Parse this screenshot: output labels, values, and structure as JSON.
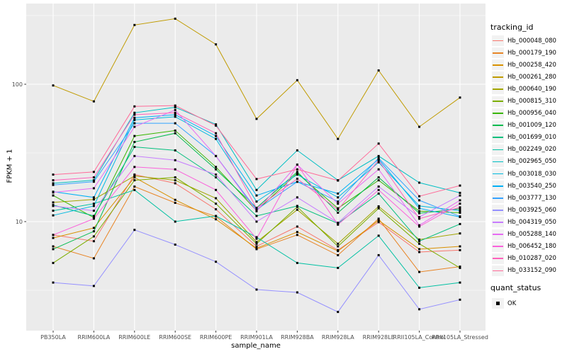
{
  "chart_data": {
    "type": "line",
    "title": "",
    "xlabel": "sample_name",
    "ylabel": "FPKM + 1",
    "y_scale": "log10",
    "y_ticks": [
      10,
      100
    ],
    "y_minor_ticks": [
      3.162,
      31.623,
      316.228
    ],
    "ylim": [
      1.6,
      380
    ],
    "grid": true,
    "panel_background": "#EBEBEB",
    "gridline_color": "#FFFFFF",
    "tick_label_color": "#4D4D4D",
    "legend_position": "right",
    "legend_title": "tracking_id",
    "quant_legend": {
      "title": "quant_status",
      "label": "OK"
    },
    "point_shape": "filled-square",
    "point_color": "#000000",
    "x_categories": [
      "PB350LA",
      "RRIM600LA",
      "RRIM600LE",
      "RRIM600SE",
      "RRIM600PE",
      "RRIM901LA",
      "RRIM928BA",
      "RRIM928LA",
      "RRIM928LE",
      "RRII105LA_Control",
      "RRII105LA_Stressed"
    ],
    "series": [
      {
        "name": "Hb_000048_080",
        "color": "#F8766D",
        "values": [
          8.0,
          7.2,
          22,
          19,
          12.3,
          6.6,
          9.2,
          6.2,
          9.9,
          6.0,
          6.2
        ]
      },
      {
        "name": "Hb_000179_190",
        "color": "#E88526",
        "values": [
          6.6,
          5.4,
          18,
          13.7,
          10.9,
          6.3,
          8.0,
          5.7,
          10.5,
          4.3,
          4.7
        ]
      },
      {
        "name": "Hb_000258_420",
        "color": "#D89000",
        "values": [
          7.6,
          9.0,
          21,
          14.4,
          10.4,
          6.4,
          8.4,
          6.1,
          10.2,
          6.3,
          6.6
        ]
      },
      {
        "name": "Hb_000261_280",
        "color": "#C09B00",
        "values": [
          98,
          75,
          270,
          300,
          195,
          56,
          107,
          40,
          126,
          49,
          80
        ]
      },
      {
        "name": "Hb_000640_190",
        "color": "#A3A500",
        "values": [
          13.8,
          14.5,
          21.5,
          20,
          14.8,
          7.1,
          12.2,
          6.9,
          12.9,
          7.4,
          8.2
        ]
      },
      {
        "name": "Hb_000815_310",
        "color": "#7CAE00",
        "values": [
          5.0,
          7.8,
          20,
          21,
          13.5,
          6.9,
          12.8,
          6.6,
          12.5,
          6.9,
          4.6
        ]
      },
      {
        "name": "Hb_000956_040",
        "color": "#39B600",
        "values": [
          15.5,
          10.7,
          42,
          46,
          25,
          12.0,
          22.5,
          12.5,
          20,
          11.9,
          11.6
        ]
      },
      {
        "name": "Hb_001009_120",
        "color": "#00BB4E",
        "values": [
          6.3,
          8.5,
          38,
          44,
          24,
          12.6,
          23,
          11.6,
          21,
          11.5,
          12.4
        ]
      },
      {
        "name": "Hb_001699_010",
        "color": "#00BF7D",
        "values": [
          13.2,
          11.0,
          35,
          33,
          21,
          11.0,
          13.0,
          9.7,
          16,
          7.2,
          9.6
        ]
      },
      {
        "name": "Hb_002249_020",
        "color": "#00C1A3",
        "values": [
          12.0,
          13.5,
          17,
          10,
          11,
          7.7,
          5.0,
          4.6,
          7.9,
          3.3,
          3.6
        ]
      },
      {
        "name": "Hb_002965_050",
        "color": "#00BFC4",
        "values": [
          19,
          20,
          62,
          68,
          51,
          17,
          33,
          20,
          30,
          19.2,
          16.2
        ]
      },
      {
        "name": "Hb_003018_030",
        "color": "#00BAE0",
        "values": [
          11.1,
          13,
          55,
          58,
          40,
          14,
          22,
          15,
          27,
          13,
          12
        ]
      },
      {
        "name": "Hb_003540_250",
        "color": "#00B0F6",
        "values": [
          16.5,
          15,
          57,
          60,
          42,
          15.5,
          19.5,
          16,
          28.5,
          12.5,
          10.8
        ]
      },
      {
        "name": "Hb_003777_130",
        "color": "#35A2FF",
        "values": [
          18.5,
          19.5,
          52,
          52,
          30,
          12.2,
          19.5,
          14,
          29,
          14.3,
          10.9
        ]
      },
      {
        "name": "Hb_003925_060",
        "color": "#9590FF",
        "values": [
          3.6,
          3.4,
          8.7,
          6.8,
          5.1,
          3.2,
          3.05,
          2.2,
          5.7,
          2.3,
          2.7
        ]
      },
      {
        "name": "Hb_004319_050",
        "color": "#C77CFF",
        "values": [
          13,
          12,
          30,
          28,
          22,
          10,
          15,
          9.8,
          18,
          10.8,
          15.5
        ]
      },
      {
        "name": "Hb_005288_140",
        "color": "#E76BF3",
        "values": [
          16.3,
          17.5,
          49,
          65,
          30,
          11.9,
          26,
          13.5,
          24,
          9.4,
          14.3
        ]
      },
      {
        "name": "Hb_006452_180",
        "color": "#FA62DB",
        "values": [
          8.0,
          10.5,
          25,
          24,
          17,
          7.5,
          26,
          9.5,
          17,
          9.2,
          13.5
        ]
      },
      {
        "name": "Hb_010287_020",
        "color": "#FF62BC",
        "values": [
          20,
          21,
          60,
          62,
          44,
          12.5,
          20.5,
          12.2,
          28,
          10.5,
          12.7
        ]
      },
      {
        "name": "Hb_033152_090",
        "color": "#FF6A98",
        "values": [
          22,
          23,
          69,
          70,
          50,
          20.4,
          24,
          19.9,
          37,
          15.3,
          18.3
        ]
      }
    ]
  }
}
